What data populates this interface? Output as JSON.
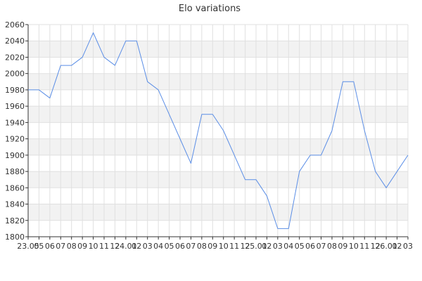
{
  "chart_data": {
    "type": "line",
    "title": "Elo variations",
    "xlabel": "",
    "ylabel": "",
    "ylim": [
      1800,
      2060
    ],
    "y_ticks": [
      1800,
      1820,
      1840,
      1860,
      1880,
      1900,
      1920,
      1940,
      1960,
      1980,
      2000,
      2020,
      2040,
      2060
    ],
    "grid": true,
    "legend": "none",
    "x_tick_labels": [
      "23.05",
      "05",
      "06",
      "07",
      "08",
      "09",
      "10",
      "11",
      "12",
      "24.01",
      "02",
      "03",
      "04",
      "05",
      "06",
      "07",
      "08",
      "09",
      "10",
      "11",
      "12",
      "25.01",
      "02",
      "03",
      "04",
      "05",
      "06",
      "07",
      "08",
      "09",
      "10",
      "11",
      "12",
      "26.01",
      "02",
      "03"
    ],
    "series": [
      {
        "values": [
          1980,
          1980,
          1970,
          2010,
          2010,
          2020,
          2050,
          2020,
          2010,
          2040,
          2040,
          1990,
          1980,
          1950,
          1920,
          1890,
          1950,
          1950,
          1930,
          1900,
          1870,
          1870,
          1850,
          1810,
          1810,
          1880,
          1900,
          1900,
          1930,
          1990,
          1990,
          1930,
          1880,
          1860,
          1880,
          1900
        ],
        "color": "#5b8ee6"
      }
    ],
    "colors": {
      "band": "#f2f2f2",
      "grid": "#e0e0e0",
      "axis": "#333333"
    }
  }
}
